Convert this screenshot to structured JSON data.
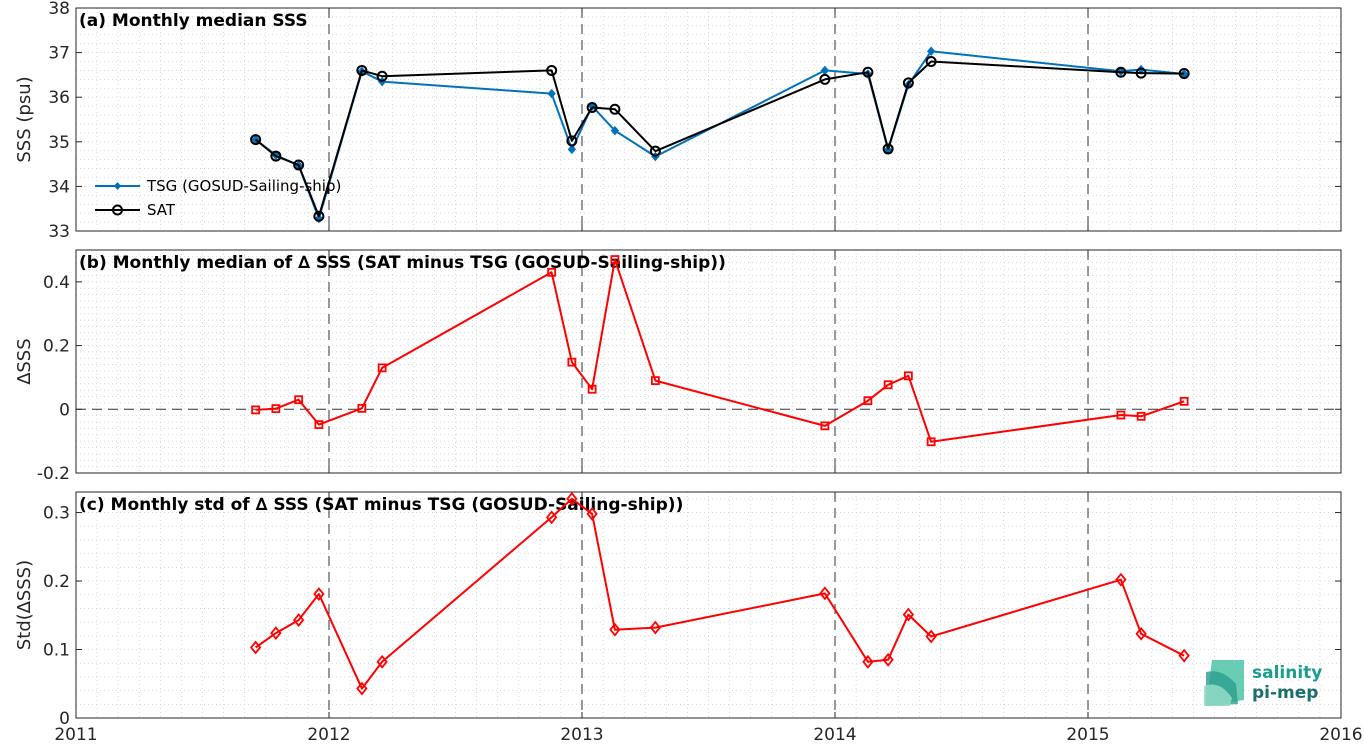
{
  "chart_data": [
    {
      "panel": "a",
      "type": "line",
      "title": "(a) Monthly median SSS",
      "ylabel": "SSS (psu)",
      "xlim": [
        2011,
        2016
      ],
      "ylim": [
        33,
        38
      ],
      "yticks": [
        33,
        34,
        35,
        36,
        37,
        38
      ],
      "legend_position": "middle-left",
      "grid": "minor dotted",
      "series": [
        {
          "name": "TSG (GOSUD-Sailing-ship)",
          "color": "#0072bd",
          "marker": "filled-diamond",
          "points": [
            [
              2011.71,
              35.05
            ],
            [
              2011.79,
              34.7
            ],
            [
              2011.88,
              34.47
            ],
            [
              2011.96,
              33.28
            ],
            [
              2012.13,
              36.58
            ],
            [
              2012.21,
              36.35
            ],
            [
              2012.88,
              36.08
            ],
            [
              2012.96,
              34.83
            ],
            [
              2013.04,
              35.8
            ],
            [
              2013.13,
              35.25
            ],
            [
              2013.29,
              34.67
            ],
            [
              2013.96,
              36.6
            ],
            [
              2014.13,
              36.52
            ],
            [
              2014.21,
              34.82
            ],
            [
              2014.29,
              36.28
            ],
            [
              2014.38,
              37.03
            ],
            [
              2015.13,
              36.58
            ],
            [
              2015.21,
              36.62
            ],
            [
              2015.38,
              36.52
            ]
          ]
        },
        {
          "name": "SAT",
          "color": "#000000",
          "marker": "circle",
          "points": [
            [
              2011.71,
              35.05
            ],
            [
              2011.79,
              34.68
            ],
            [
              2011.88,
              34.48
            ],
            [
              2011.96,
              33.33
            ],
            [
              2012.13,
              36.6
            ],
            [
              2012.21,
              36.47
            ],
            [
              2012.88,
              36.6
            ],
            [
              2012.96,
              35.02
            ],
            [
              2013.04,
              35.77
            ],
            [
              2013.13,
              35.73
            ],
            [
              2013.29,
              34.79
            ],
            [
              2013.96,
              36.4
            ],
            [
              2014.13,
              36.56
            ],
            [
              2014.21,
              34.84
            ],
            [
              2014.29,
              36.32
            ],
            [
              2014.38,
              36.8
            ],
            [
              2015.13,
              36.56
            ],
            [
              2015.21,
              36.54
            ],
            [
              2015.38,
              36.53
            ]
          ]
        }
      ]
    },
    {
      "panel": "b",
      "type": "line",
      "title": "(b) Monthly median of ∆ SSS (SAT minus TSG (GOSUD-Sailing-ship))",
      "ylabel": "∆SSS",
      "xlim": [
        2011,
        2016
      ],
      "ylim": [
        -0.2,
        0.5
      ],
      "yticks": [
        -0.2,
        0,
        0.2,
        0.4
      ],
      "zero_line": true,
      "series": [
        {
          "color": "#ff0000",
          "marker": "square",
          "points": [
            [
              2011.71,
              -0.002
            ],
            [
              2011.79,
              0.002
            ],
            [
              2011.88,
              0.03
            ],
            [
              2011.96,
              -0.048
            ],
            [
              2012.13,
              0.003
            ],
            [
              2012.21,
              0.13
            ],
            [
              2012.88,
              0.43
            ],
            [
              2012.96,
              0.148
            ],
            [
              2013.04,
              0.063
            ],
            [
              2013.13,
              0.47
            ],
            [
              2013.29,
              0.09
            ],
            [
              2013.96,
              -0.052
            ],
            [
              2014.13,
              0.027
            ],
            [
              2014.21,
              0.077
            ],
            [
              2014.29,
              0.105
            ],
            [
              2014.38,
              -0.102
            ],
            [
              2015.13,
              -0.018
            ],
            [
              2015.21,
              -0.022
            ],
            [
              2015.38,
              0.025
            ]
          ]
        }
      ]
    },
    {
      "panel": "c",
      "type": "line",
      "title": "(c) Monthly std of ∆ SSS (SAT minus TSG (GOSUD-Sailing-ship))",
      "ylabel": "Std(∆SSS)",
      "xlim": [
        2011,
        2016
      ],
      "ylim": [
        0,
        0.33
      ],
      "yticks": [
        0,
        0.1,
        0.2,
        0.3
      ],
      "xticks": [
        "2011",
        "2012",
        "2013",
        "2014",
        "2015",
        "2016"
      ],
      "series": [
        {
          "color": "#ff0000",
          "marker": "diamond",
          "points": [
            [
              2011.71,
              0.103
            ],
            [
              2011.79,
              0.124
            ],
            [
              2011.88,
              0.143
            ],
            [
              2011.96,
              0.181
            ],
            [
              2012.13,
              0.043
            ],
            [
              2012.21,
              0.082
            ],
            [
              2012.88,
              0.293
            ],
            [
              2012.96,
              0.32
            ],
            [
              2013.04,
              0.298
            ],
            [
              2013.13,
              0.129
            ],
            [
              2013.29,
              0.132
            ],
            [
              2013.96,
              0.182
            ],
            [
              2014.13,
              0.082
            ],
            [
              2014.21,
              0.085
            ],
            [
              2014.29,
              0.151
            ],
            [
              2014.38,
              0.119
            ],
            [
              2015.13,
              0.202
            ],
            [
              2015.21,
              0.123
            ],
            [
              2015.38,
              0.091
            ]
          ]
        }
      ]
    }
  ],
  "logo": {
    "line1": "salinity",
    "line2": "pi-mep"
  }
}
